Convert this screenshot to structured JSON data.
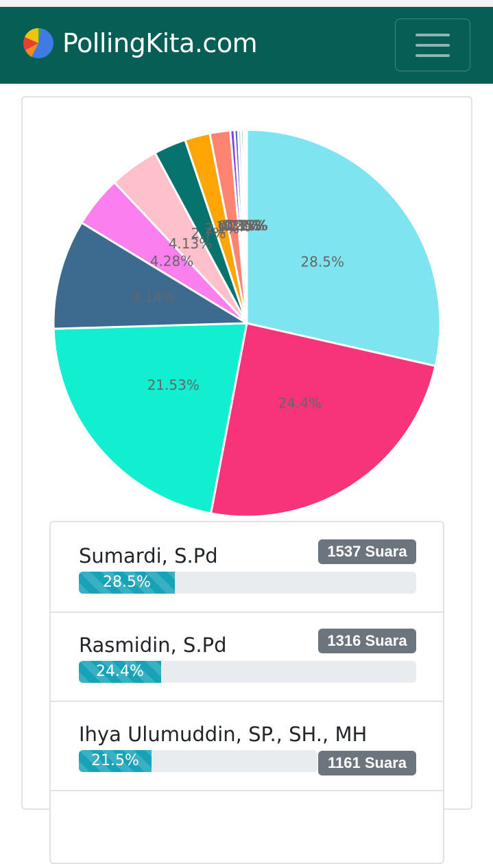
{
  "header": {
    "brand": "PollingKita.com",
    "logo_icon": "pie-chart-logo-icon",
    "menu_icon": "hamburger-menu-icon",
    "background_color": "#075e54"
  },
  "chart_data": {
    "type": "pie",
    "slices": [
      {
        "label": "28.5%",
        "value": 28.5,
        "color": "#7ee4f0"
      },
      {
        "label": "24.4%",
        "value": 24.4,
        "color": "#f7347a"
      },
      {
        "label": "21.53%",
        "value": 21.53,
        "color": "#11eed0"
      },
      {
        "label": "9.14%",
        "value": 9.14,
        "color": "#3d6b8f"
      },
      {
        "label": "4.28%",
        "value": 4.28,
        "color": "#fc7ff0"
      },
      {
        "label": "4.13%",
        "value": 4.13,
        "color": "#fec0cb"
      },
      {
        "label": "2.7%",
        "value": 2.7,
        "color": "#06736e"
      },
      {
        "label": "2.1%",
        "value": 2.1,
        "color": "#ffa505"
      },
      {
        "label": "1.7%",
        "value": 1.7,
        "color": "#fc8471"
      },
      {
        "label": "0.35%",
        "value": 0.35,
        "color": "#7b3ff0"
      },
      {
        "label": "0.3%",
        "value": 0.3,
        "color": "#5c67c3"
      },
      {
        "label": "0.25%",
        "value": 0.25,
        "color": "#d2c8e8"
      },
      {
        "label": "0.2%",
        "value": 0.2,
        "color": "#2aa37a"
      },
      {
        "label": "0.15%",
        "value": 0.15,
        "color": "#e86c9c"
      },
      {
        "label": "0.12%",
        "value": 0.12,
        "color": "#f0e8c0"
      }
    ]
  },
  "results": [
    {
      "name": "Sumardi, S.Pd",
      "votes": "1537 Suara",
      "percent_label": "28.5%",
      "percent": 28.5
    },
    {
      "name": "Rasmidin, S.Pd",
      "votes": "1316 Suara",
      "percent_label": "24.4%",
      "percent": 24.4
    },
    {
      "name": "Ihya Ulumuddin, SP., SH., MH",
      "votes": "1161 Suara",
      "percent_label": "21.5%",
      "percent": 21.5
    }
  ]
}
